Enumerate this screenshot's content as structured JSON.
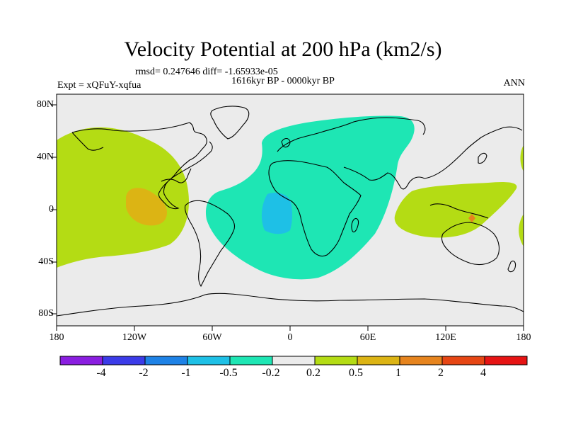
{
  "header": {
    "title": "Velocity Potential at 200 hPa (km2/s)",
    "stats": "rmsd= 0.247646 diff= -1.65933e-05",
    "period": "1616kyr BP - 0000kyr BP",
    "experiment": "Expt = xQFuY-xqfua",
    "season": "ANN"
  },
  "axes": {
    "lat_labels": [
      "80N",
      "40N",
      "0",
      "40S",
      "80S"
    ],
    "lon_labels": [
      "180",
      "120W",
      "60W",
      "0",
      "60E",
      "120E",
      "180"
    ]
  },
  "colorbar": {
    "labels": [
      "-4",
      "-2",
      "-1",
      "-0.5",
      "-0.2",
      "0.2",
      "0.5",
      "1",
      "2",
      "4"
    ],
    "colors": [
      "#8a1ee0",
      "#3b3be8",
      "#1e82e6",
      "#1ec0e6",
      "#1ee6b4",
      "#ebebeb",
      "#b4dc14",
      "#dcb414",
      "#e6841e",
      "#e64614",
      "#e61414"
    ]
  },
  "map_colors": {
    "background": "#ebebeb",
    "positive_weak": "#b4dc14",
    "positive_mid": "#dcb414",
    "positive_strong": "#e6841e",
    "negative_weak": "#1ee6b4",
    "negative_mid": "#1ec0e6",
    "coast": "#000000"
  }
}
